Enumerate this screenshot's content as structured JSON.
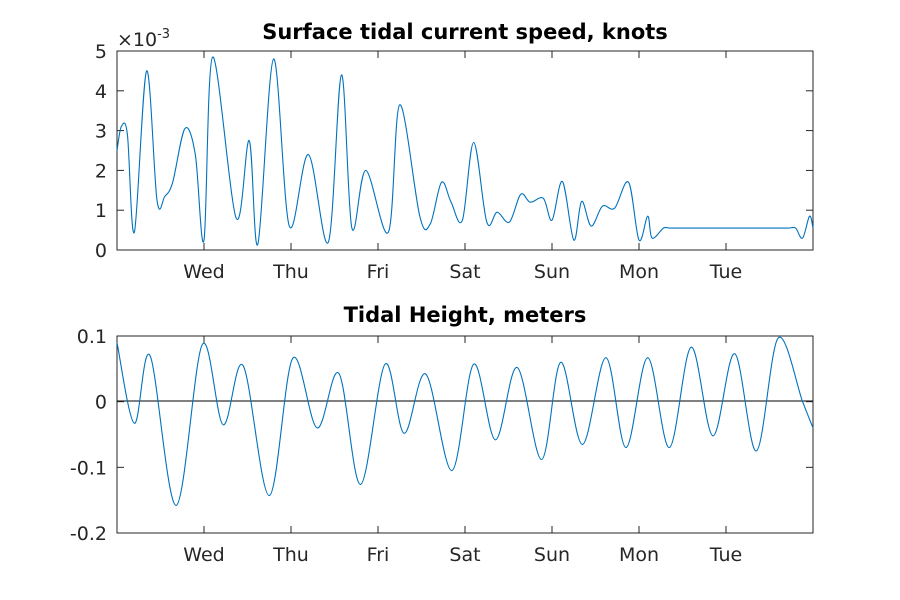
{
  "chart_data": [
    {
      "type": "line",
      "title": "Surface tidal current speed, knots",
      "exponent_label": {
        "base": "×10",
        "power": "-3"
      },
      "ylim": [
        0,
        5
      ],
      "yticks": [
        0,
        1,
        2,
        3,
        4,
        5
      ],
      "ytick_labels": [
        "0",
        "1",
        "2",
        "3",
        "4",
        "5"
      ],
      "xlim": [
        0,
        8
      ],
      "xticks": [
        1,
        2,
        3,
        4,
        5,
        6,
        7
      ],
      "xtick_labels": [
        "Wed",
        "Thu",
        "Fri",
        "Sat",
        "Sun",
        "Mon",
        "Tue"
      ],
      "x_unit": "days",
      "grid": false,
      "legend": "none",
      "series_color": "#0072bd",
      "series": [
        {
          "x": [
            0,
            0.05,
            0.12,
            0.2,
            0.34,
            0.46,
            0.55,
            0.64,
            0.78,
            0.9,
            1.0,
            1.1,
            1.37,
            1.52,
            1.62,
            1.8,
            1.98,
            2.2,
            2.43,
            2.58,
            2.7,
            2.86,
            3.12,
            3.25,
            3.48,
            3.6,
            3.73,
            3.84,
            3.97,
            4.1,
            4.25,
            4.37,
            4.51,
            4.64,
            4.75,
            4.9,
            5.0,
            5.12,
            5.25,
            5.34,
            5.45,
            5.58,
            5.72,
            5.88,
            6.0,
            6.1,
            6.15,
            6.28,
            6.35,
            6.45,
            6.55,
            6.64,
            6.75,
            6.86,
            6.94,
            7.05,
            7.15,
            7.22,
            7.34,
            7.44,
            7.52,
            7.63,
            7.72,
            7.8,
            7.88,
            7.96,
            8.0
          ],
          "values": [
            2.5,
            3.1,
            2.9,
            0.45,
            4.5,
            1.25,
            1.35,
            1.7,
            3.05,
            2.4,
            0.25,
            4.85,
            0.8,
            2.75,
            0.15,
            4.8,
            0.6,
            2.4,
            0.2,
            4.4,
            0.55,
            2.0,
            0.45,
            3.65,
            0.85,
            0.65,
            1.7,
            1.2,
            0.75,
            2.7,
            0.7,
            0.95,
            0.7,
            1.4,
            1.2,
            1.3,
            0.75,
            1.72,
            0.25,
            1.22,
            0.6,
            1.1,
            1.05,
            1.7,
            0.25,
            0.85,
            0.3,
            0.55,
            0.55,
            0.55,
            0.55,
            0.55,
            0.55,
            0.55,
            0.55,
            0.55,
            0.55,
            0.55,
            0.55,
            0.55,
            0.55,
            0.55,
            0.55,
            0.55,
            0.3,
            0.85,
            0.55
          ]
        }
      ]
    },
    {
      "type": "line",
      "title": "Tidal Height, meters",
      "ylim": [
        -0.2,
        0.1
      ],
      "yticks": [
        -0.2,
        -0.1,
        0,
        0.1
      ],
      "ytick_labels": [
        "-0.2",
        "-0.1",
        "0",
        "0.1"
      ],
      "xlim": [
        0,
        8
      ],
      "xticks": [
        1,
        2,
        3,
        4,
        5,
        6,
        7
      ],
      "xtick_labels": [
        "Wed",
        "Thu",
        "Fri",
        "Sat",
        "Sun",
        "Mon",
        "Tue"
      ],
      "x_unit": "days",
      "zero_line": true,
      "grid": false,
      "legend": "none",
      "series_color": "#0072bd",
      "series": [
        {
          "x": [
            0,
            0.2,
            0.38,
            0.68,
            0.98,
            1.22,
            1.45,
            1.75,
            2.02,
            2.3,
            2.55,
            2.8,
            3.08,
            3.3,
            3.55,
            3.85,
            4.1,
            4.35,
            4.6,
            4.88,
            5.1,
            5.35,
            5.62,
            5.85,
            6.1,
            6.35,
            6.6,
            6.85,
            7.1,
            7.35,
            7.6,
            7.88,
            8.0
          ],
          "values": [
            0.09,
            -0.033,
            0.07,
            -0.158,
            0.087,
            -0.035,
            0.055,
            -0.143,
            0.066,
            -0.04,
            0.043,
            -0.126,
            0.057,
            -0.048,
            0.042,
            -0.105,
            0.057,
            -0.058,
            0.052,
            -0.088,
            0.06,
            -0.065,
            0.067,
            -0.07,
            0.067,
            -0.07,
            0.083,
            -0.052,
            0.073,
            -0.075,
            0.097,
            0.0,
            -0.04
          ]
        }
      ]
    }
  ]
}
